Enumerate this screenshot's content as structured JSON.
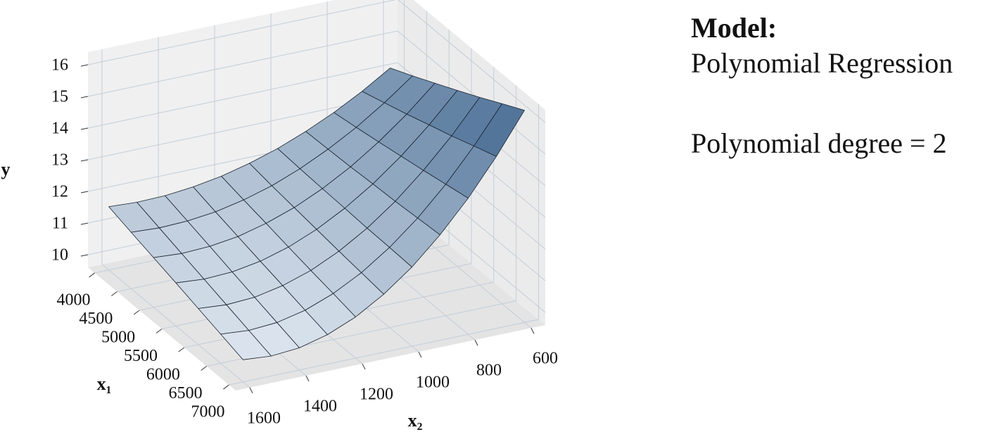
{
  "chart_data": {
    "type": "surface",
    "z_label": "y",
    "x1_label": "x₁",
    "x2_label": "x₂",
    "x1": [
      4000,
      4500,
      5000,
      5500,
      6000,
      6500,
      7000
    ],
    "x2": [
      1600,
      1500,
      1400,
      1300,
      1200,
      1100,
      1000,
      900,
      800,
      700,
      600
    ],
    "z": [
      [
        11.6,
        11.55,
        11.57,
        11.66,
        11.81,
        12.03,
        12.31,
        12.66,
        13.07,
        13.55,
        14.1
      ],
      [
        11.38,
        11.33,
        11.36,
        11.46,
        11.65,
        11.91,
        12.26,
        12.69,
        13.19,
        13.78,
        14.44
      ],
      [
        11.17,
        11.11,
        11.15,
        11.27,
        11.5,
        11.81,
        12.22,
        12.72,
        13.32,
        14.01,
        14.8
      ],
      [
        10.96,
        10.89,
        10.93,
        11.08,
        11.34,
        11.71,
        12.19,
        12.77,
        13.46,
        14.26,
        15.16
      ],
      [
        10.74,
        10.67,
        10.72,
        10.9,
        11.19,
        11.61,
        12.15,
        12.81,
        13.6,
        14.5,
        15.53
      ],
      [
        10.52,
        10.45,
        10.51,
        10.71,
        11.05,
        11.52,
        12.13,
        12.87,
        13.75,
        14.77,
        15.92
      ],
      [
        10.3,
        10.23,
        10.3,
        10.53,
        10.9,
        11.43,
        12.1,
        12.93,
        13.9,
        15.03,
        16.3
      ]
    ],
    "x1lim": [
      3850,
      7150
    ],
    "x2lim": [
      550,
      1650
    ],
    "zlim": [
      9.6,
      16.4
    ],
    "x1ticks": [
      4000,
      4500,
      5000,
      5500,
      6000,
      6500,
      7000
    ],
    "x2ticks": [
      600,
      800,
      1000,
      1200,
      1400,
      1600
    ],
    "zticks": [
      10,
      11,
      12,
      13,
      14,
      15,
      16
    ],
    "grid": true,
    "colormap": [
      "#eef3f9",
      "#3b628c"
    ],
    "edgecolor": "#17212d"
  },
  "info": {
    "heading": "Model:",
    "model": "Polynomial Regression",
    "degree": "Polynomial degree = 2"
  }
}
